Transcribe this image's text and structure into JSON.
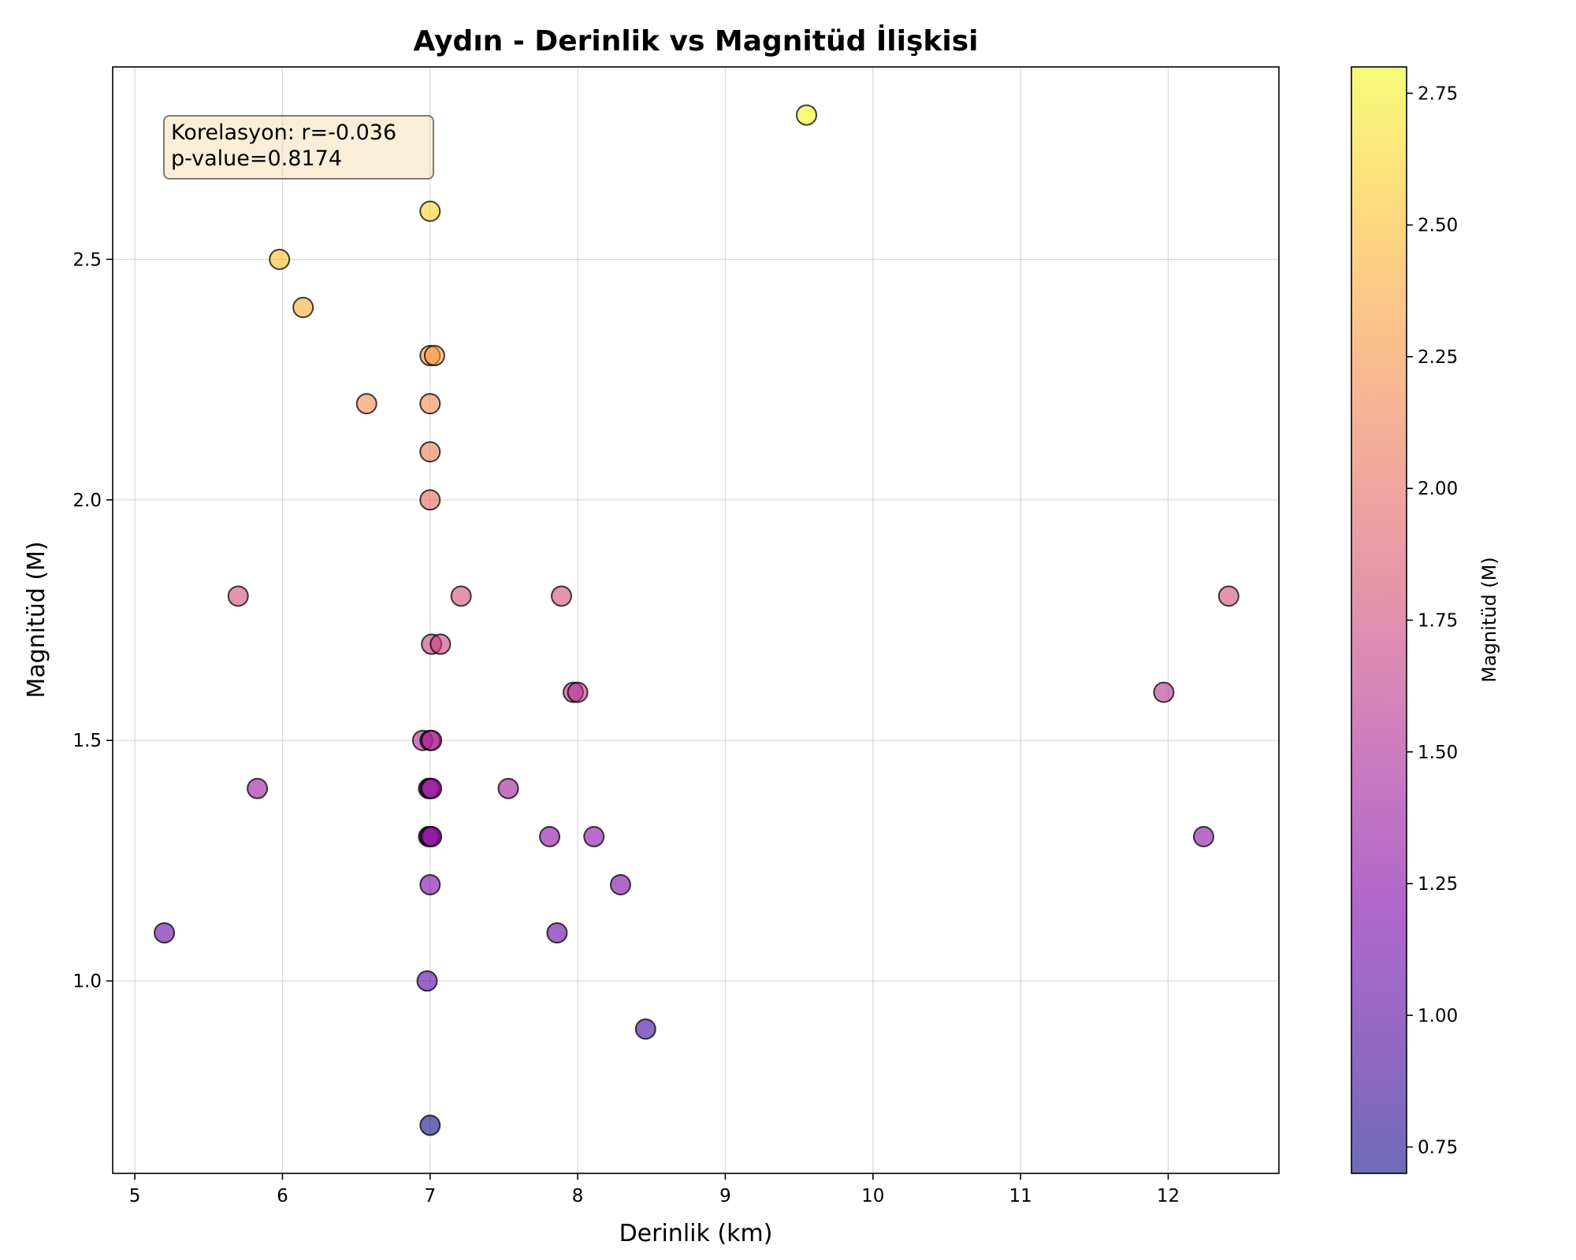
{
  "chart_data": {
    "type": "scatter",
    "title": "Aydın - Derinlik vs Magnitüd İlişkisi",
    "xlabel": "Derinlik (km)",
    "ylabel": "Magnitüd (M)",
    "xlim": [
      4.85,
      12.75
    ],
    "ylim": [
      0.6,
      2.9
    ],
    "xticks": [
      5,
      6,
      7,
      8,
      9,
      10,
      11,
      12
    ],
    "yticks": [
      1.0,
      1.5,
      2.0,
      2.5
    ],
    "ytick_labels": [
      "1.0",
      "1.5",
      "2.0",
      "2.5"
    ],
    "grid": true,
    "colormap": "plasma",
    "color_value": "magnitude",
    "colorbar": {
      "label": "Magnitüd (M)",
      "range": [
        0.7,
        2.8
      ],
      "ticks": [
        0.75,
        1.0,
        1.25,
        1.5,
        1.75,
        2.0,
        2.25,
        2.5,
        2.75
      ],
      "tick_labels": [
        "0.75",
        "1.00",
        "1.25",
        "1.50",
        "1.75",
        "2.00",
        "2.25",
        "2.50",
        "2.75"
      ]
    },
    "annotation": {
      "line1": "Korelasyon: r=-0.036",
      "line2": "p-value=0.8174"
    },
    "points": [
      {
        "x": 9.55,
        "y": 2.8
      },
      {
        "x": 7.0,
        "y": 2.6
      },
      {
        "x": 5.98,
        "y": 2.5
      },
      {
        "x": 6.14,
        "y": 2.4
      },
      {
        "x": 7.0,
        "y": 2.3
      },
      {
        "x": 7.03,
        "y": 2.3
      },
      {
        "x": 6.57,
        "y": 2.2
      },
      {
        "x": 7.0,
        "y": 2.2
      },
      {
        "x": 7.0,
        "y": 2.1
      },
      {
        "x": 7.0,
        "y": 2.0
      },
      {
        "x": 5.7,
        "y": 1.8
      },
      {
        "x": 7.21,
        "y": 1.8
      },
      {
        "x": 7.89,
        "y": 1.8
      },
      {
        "x": 12.41,
        "y": 1.8
      },
      {
        "x": 7.01,
        "y": 1.7
      },
      {
        "x": 7.07,
        "y": 1.7
      },
      {
        "x": 7.97,
        "y": 1.6
      },
      {
        "x": 8.0,
        "y": 1.6
      },
      {
        "x": 11.97,
        "y": 1.6
      },
      {
        "x": 6.95,
        "y": 1.5
      },
      {
        "x": 7.0,
        "y": 1.5
      },
      {
        "x": 7.01,
        "y": 1.5
      },
      {
        "x": 5.83,
        "y": 1.4
      },
      {
        "x": 6.99,
        "y": 1.4
      },
      {
        "x": 7.0,
        "y": 1.4
      },
      {
        "x": 7.01,
        "y": 1.4
      },
      {
        "x": 7.53,
        "y": 1.4
      },
      {
        "x": 6.99,
        "y": 1.3
      },
      {
        "x": 7.0,
        "y": 1.3
      },
      {
        "x": 7.01,
        "y": 1.3
      },
      {
        "x": 7.81,
        "y": 1.3
      },
      {
        "x": 8.11,
        "y": 1.3
      },
      {
        "x": 12.24,
        "y": 1.3
      },
      {
        "x": 7.0,
        "y": 1.2
      },
      {
        "x": 8.29,
        "y": 1.2
      },
      {
        "x": 5.2,
        "y": 1.1
      },
      {
        "x": 7.86,
        "y": 1.1
      },
      {
        "x": 6.98,
        "y": 1.0
      },
      {
        "x": 8.46,
        "y": 0.9
      },
      {
        "x": 7.0,
        "y": 0.7
      }
    ]
  }
}
